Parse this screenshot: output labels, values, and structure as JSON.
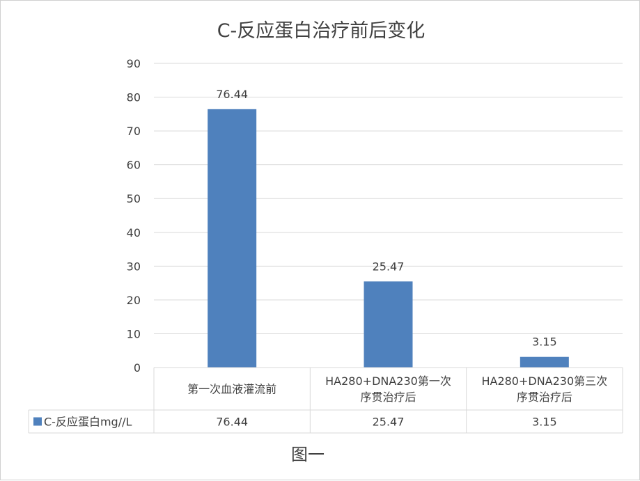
{
  "chart_data": {
    "type": "bar",
    "title": "C-反应蛋白治疗前后变化",
    "categories": [
      [
        "第一次血液灌流前"
      ],
      [
        "HA280+DNA230第一次",
        "序贯治疗后"
      ],
      [
        "HA280+DNA230第三次",
        "序贯治疗后"
      ]
    ],
    "series": [
      {
        "name": "C-反应蛋白mg//L",
        "color": "#4f81bd",
        "values": [
          76.44,
          25.47,
          3.15
        ],
        "labels": [
          "76.44",
          "25.47",
          "3.15"
        ]
      }
    ],
    "ylim": [
      0,
      90
    ],
    "yticks": [
      0,
      10,
      20,
      30,
      40,
      50,
      60,
      70,
      80,
      90
    ],
    "grid": true,
    "data_table": true
  },
  "caption": "图一"
}
